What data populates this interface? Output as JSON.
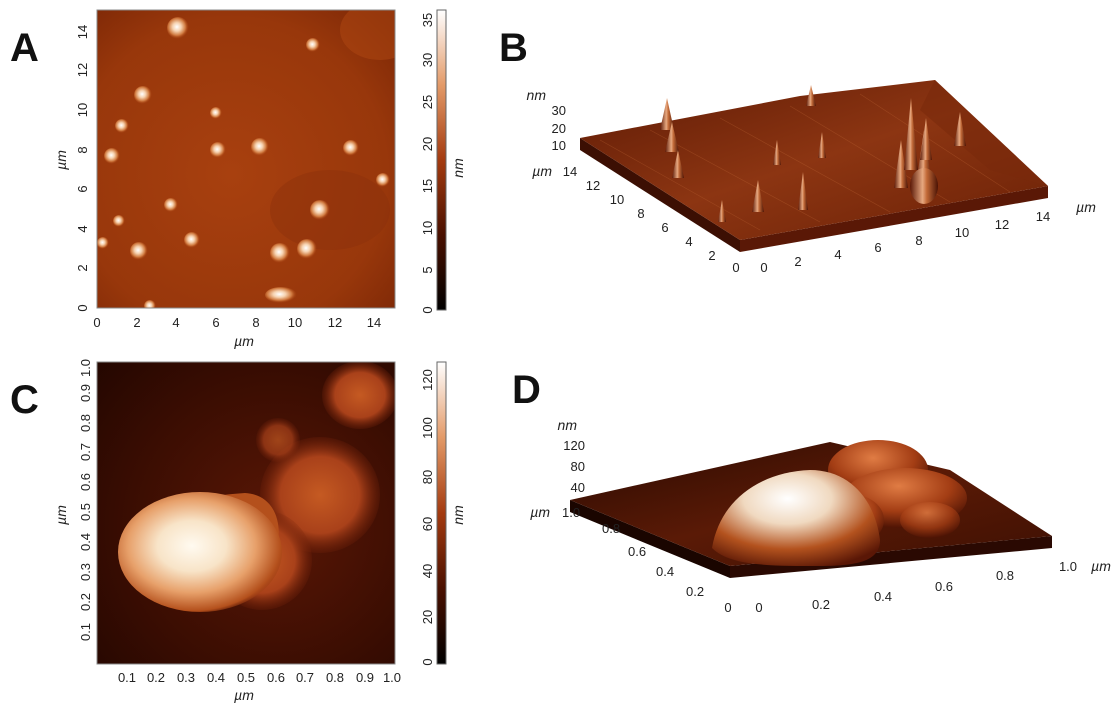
{
  "panels": {
    "a": {
      "letter": "A",
      "x_axis_label": "µm",
      "y_axis_label": "µm",
      "x_ticks": [
        "0",
        "2",
        "4",
        "6",
        "8",
        "10",
        "12",
        "14"
      ],
      "y_ticks": [
        "0",
        "2",
        "4",
        "6",
        "8",
        "10",
        "12",
        "14"
      ],
      "colorbar_label": "nm",
      "colorbar_ticks": [
        "0",
        "5",
        "10",
        "15",
        "20",
        "25",
        "30",
        "35"
      ]
    },
    "b": {
      "letter": "B",
      "z_unit": "nm",
      "z_ticks": [
        "30",
        "20",
        "10"
      ],
      "left_unit": "µm",
      "left_ticks": [
        "14",
        "12",
        "10",
        "8",
        "6",
        "4",
        "2",
        "0"
      ],
      "right_unit": "µm",
      "right_ticks": [
        "0",
        "2",
        "4",
        "6",
        "8",
        "10",
        "12",
        "14"
      ]
    },
    "c": {
      "letter": "C",
      "x_axis_label": "µm",
      "y_axis_label": "µm",
      "x_ticks": [
        "0.1",
        "0.2",
        "0.3",
        "0.4",
        "0.5",
        "0.6",
        "0.7",
        "0.8",
        "0.9",
        "1.0"
      ],
      "y_ticks": [
        "0.1",
        "0.2",
        "0.3",
        "0.4",
        "0.5",
        "0.6",
        "0.7",
        "0.8",
        "0.9",
        "1.0"
      ],
      "colorbar_label": "nm",
      "colorbar_ticks": [
        "0",
        "20",
        "40",
        "60",
        "80",
        "100",
        "120"
      ]
    },
    "d": {
      "letter": "D",
      "z_unit": "nm",
      "z_ticks": [
        "120",
        "80",
        "40"
      ],
      "left_unit": "µm",
      "left_ticks": [
        "1.0",
        "0.8",
        "0.6",
        "0.4",
        "0.2",
        "0"
      ],
      "right_unit": "µm",
      "right_ticks": [
        "0",
        "0.2",
        "0.4",
        "0.6",
        "0.8",
        "1.0"
      ]
    }
  },
  "colors": {
    "afm_dark": "#1a0500",
    "afm_mid": "#8a2f0c",
    "afm_light": "#e6a070",
    "afm_white": "#fff6ea"
  }
}
